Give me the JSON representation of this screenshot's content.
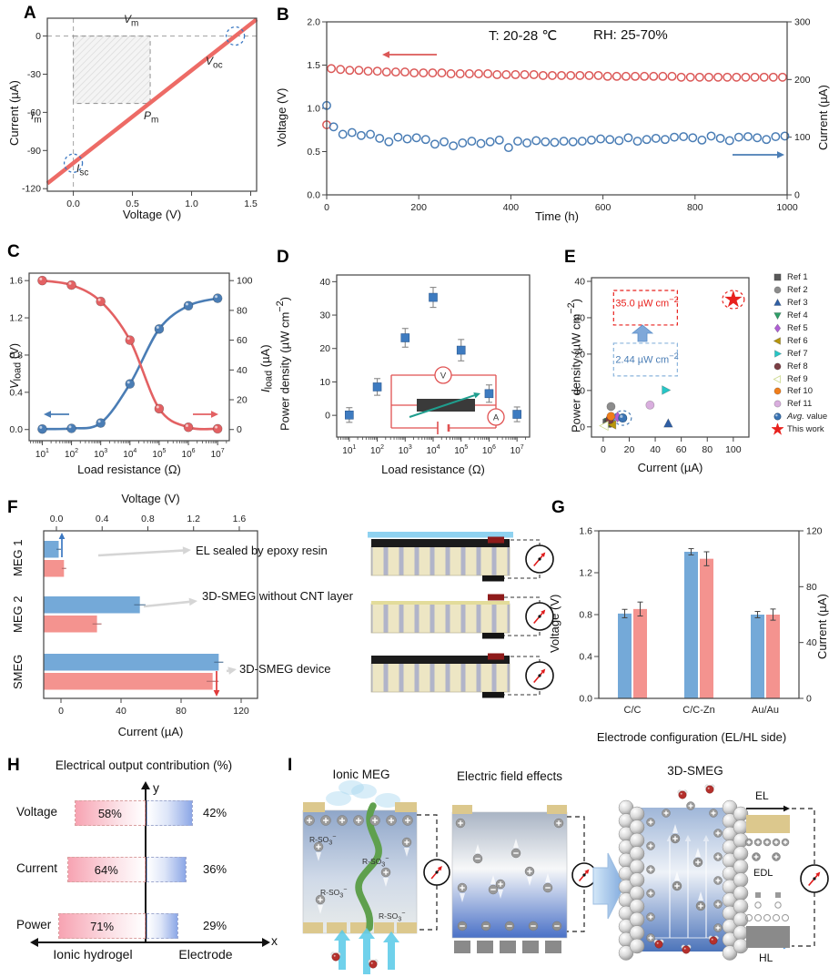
{
  "figure": {
    "panel_letters": {
      "A": "A",
      "B": "B",
      "C": "C",
      "D": "D",
      "E": "E",
      "F": "F",
      "G": "G",
      "H": "H",
      "I": "I"
    }
  },
  "chart_data": [
    {
      "panel": "A",
      "type": "line",
      "xlabel": "Voltage (V)",
      "ylabel": "Current (µA)",
      "xlim": [
        -0.22,
        1.55
      ],
      "ylim": [
        -122,
        14
      ],
      "xticks": [
        "0.0",
        "0.5",
        "1.0",
        "1.5"
      ],
      "xtick_vals": [
        0,
        0.5,
        1,
        1.5
      ],
      "yticks": [
        "0",
        "-30",
        "-60",
        "-90",
        "-120"
      ],
      "ytick_vals": [
        0,
        -30,
        -60,
        -90,
        -120
      ],
      "line_color": "#ED6B66",
      "series": [
        {
          "name": "iv-line",
          "x": [
            -0.22,
            1.55
          ],
          "y": [
            -115.9,
            13.1
          ]
        }
      ],
      "key_points": {
        "isc": {
          "x": 0,
          "y": -100
        },
        "voc": {
          "x": 1.37,
          "y": 0
        }
      },
      "pm_rect": {
        "x0": 0,
        "x1": 0.65,
        "y0": -53,
        "y1": 0
      },
      "annotations": [
        {
          "id": "vm",
          "html": "<i>V</i><sub>m</sub>"
        },
        {
          "id": "voc",
          "html": "<i>V</i><sub>oc</sub>"
        },
        {
          "id": "pm",
          "html": "<i>P</i><sub>m</sub>"
        },
        {
          "id": "im",
          "html": "<i>I</i><sub>m</sub>"
        },
        {
          "id": "isc",
          "html": "<i>I</i><sub>sc</sub>"
        }
      ]
    },
    {
      "panel": "B",
      "type": "scatter",
      "xlabel": "Time (h)",
      "ylabel_left": "Voltage (V)",
      "ylabel_right": "Current (µA)",
      "temp_label": "T: 20-28 ℃",
      "rh_label": "RH: 25-70%",
      "xlim": [
        0,
        1000
      ],
      "ylim_left": [
        0,
        2
      ],
      "ylim_right": [
        0,
        300
      ],
      "xticks": [
        0,
        200,
        400,
        600,
        800,
        1000
      ],
      "yticks_left": [
        "0.0",
        "0.5",
        "1.0",
        "1.5",
        "2.0"
      ],
      "ytick_left_vals": [
        0,
        0.5,
        1,
        1.5,
        2
      ],
      "yticks_right": [
        0,
        100,
        200,
        300
      ],
      "series": [
        {
          "name": "voltage",
          "color": "#DB5857",
          "axis": "left",
          "x": [
            0,
            10,
            30,
            50,
            70,
            90,
            110,
            130,
            150,
            170,
            190,
            210,
            230,
            250,
            270,
            290,
            310,
            330,
            350,
            370,
            390,
            410,
            430,
            450,
            470,
            490,
            510,
            530,
            550,
            570,
            590,
            610,
            630,
            650,
            670,
            690,
            710,
            730,
            750,
            770,
            790,
            810,
            830,
            850,
            870,
            890,
            910,
            930,
            950,
            970,
            990
          ],
          "y": [
            0.81,
            1.46,
            1.45,
            1.44,
            1.44,
            1.43,
            1.43,
            1.42,
            1.42,
            1.42,
            1.41,
            1.41,
            1.41,
            1.41,
            1.4,
            1.4,
            1.4,
            1.4,
            1.4,
            1.39,
            1.39,
            1.39,
            1.39,
            1.39,
            1.38,
            1.38,
            1.38,
            1.38,
            1.38,
            1.38,
            1.38,
            1.37,
            1.37,
            1.37,
            1.37,
            1.37,
            1.37,
            1.37,
            1.37,
            1.36,
            1.36,
            1.36,
            1.36,
            1.36,
            1.36,
            1.36,
            1.36,
            1.36,
            1.36,
            1.36,
            1.36
          ]
        },
        {
          "name": "current",
          "color": "#4A7DB5",
          "axis": "right",
          "x": [
            0,
            15,
            35,
            55,
            75,
            95,
            115,
            135,
            155,
            175,
            195,
            215,
            235,
            255,
            275,
            295,
            315,
            335,
            355,
            375,
            395,
            415,
            435,
            455,
            475,
            495,
            515,
            535,
            555,
            575,
            595,
            615,
            635,
            655,
            675,
            695,
            715,
            735,
            755,
            775,
            795,
            815,
            835,
            855,
            875,
            895,
            915,
            935,
            955,
            975,
            995
          ],
          "y": [
            155,
            118,
            105,
            108,
            103,
            105,
            98,
            92,
            100,
            97,
            99,
            96,
            88,
            92,
            85,
            90,
            93,
            89,
            92,
            95,
            82,
            93,
            90,
            94,
            92,
            91,
            93,
            92,
            93,
            95,
            97,
            96,
            94,
            99,
            93,
            96,
            98,
            96,
            100,
            101,
            99,
            95,
            102,
            98,
            94,
            100,
            101,
            99,
            96,
            101,
            102
          ]
        }
      ]
    },
    {
      "panel": "C",
      "type": "line",
      "xlabel": "Load resistance (Ω)",
      "ylabel_left_html": "<i>V</i><sub>load</sub> (V)",
      "ylabel_right_html": "<i>I</i><sub>load</sub> (µA)",
      "x_log_exponents": [
        1,
        2,
        3,
        4,
        5,
        6,
        7
      ],
      "yticks_left": [
        "0.0",
        "0.4",
        "0.8",
        "1.2",
        "1.6"
      ],
      "ytick_left_vals": [
        0,
        0.4,
        0.8,
        1.2,
        1.6
      ],
      "yticks_right": [
        0,
        20,
        40,
        60,
        80,
        100
      ],
      "series": [
        {
          "name": "V_load",
          "color": "#4A7DB5",
          "axis": "left",
          "exp": [
            1,
            2,
            3,
            4,
            5,
            6,
            7
          ],
          "y": [
            0.005,
            0.012,
            0.07,
            0.49,
            1.08,
            1.33,
            1.41
          ]
        },
        {
          "name": "I_load",
          "color": "#E36163",
          "axis": "right",
          "exp": [
            1,
            2,
            3,
            4,
            5,
            6,
            7
          ],
          "y": [
            100,
            97,
            86,
            60,
            14,
            1.5,
            0.5
          ]
        }
      ]
    },
    {
      "panel": "D",
      "type": "scatter",
      "xlabel": "Load resistance (Ω)",
      "ylabel_html": "Power density (µW cm<sup>−2</sup>)",
      "x_log_exponents": [
        1,
        2,
        3,
        4,
        5,
        6,
        7
      ],
      "yticks": [
        0,
        10,
        20,
        30,
        40
      ],
      "ylim": [
        -6.5,
        42
      ],
      "series": [
        {
          "name": "power",
          "color": "#3E7BC0",
          "exp": [
            1,
            2,
            3,
            4,
            5,
            6,
            7
          ],
          "y": [
            0.1,
            8.5,
            23.2,
            35.3,
            19.5,
            6.5,
            0.3
          ],
          "err": [
            2.2,
            2.5,
            2.8,
            3.0,
            3.2,
            2.6,
            2.2
          ]
        }
      ],
      "inset": {
        "voltmeter": "V",
        "ammeter": "A"
      }
    },
    {
      "panel": "E",
      "type": "scatter",
      "xlabel": "Current  (µA)",
      "ylabel_html": "Power density (µW cm<sup>−2</sup>)",
      "xlim": [
        -9,
        112
      ],
      "ylim": [
        -2.8,
        41
      ],
      "xticks": [
        0,
        20,
        40,
        60,
        80,
        100
      ],
      "yticks": [
        0,
        10,
        20,
        30,
        40
      ],
      "points": [
        {
          "label": "Ref 1",
          "shape": "square",
          "color": "#595959",
          "x": 3,
          "y": 1.0
        },
        {
          "label": "Ref 2",
          "shape": "circle",
          "color": "#8c8c8c",
          "x": 6,
          "y": 5.6
        },
        {
          "label": "Ref 3",
          "shape": "triangle-up",
          "color": "#2F5FA5",
          "x": 50,
          "y": 0.9
        },
        {
          "label": "Ref 4",
          "shape": "triangle-down",
          "color": "#2F9E68",
          "x": 4,
          "y": 1.4
        },
        {
          "label": "Ref 5",
          "shape": "diamond",
          "color": "#B05FD6",
          "x": 11,
          "y": 2.7
        },
        {
          "label": "Ref 6",
          "shape": "triangle-left",
          "color": "#B8960C",
          "x": 7,
          "y": 0.6
        },
        {
          "label": "Ref 7",
          "shape": "triangle-right",
          "color": "#26C6C6",
          "x": 48,
          "y": 10.1
        },
        {
          "label": "Ref 8",
          "shape": "circle",
          "color": "#7B3F45",
          "x": 5,
          "y": 2.0
        },
        {
          "label": "Ref 9",
          "shape": "triangle-left",
          "color": "#CDD98F",
          "open": true,
          "x": 1,
          "y": 0.3
        },
        {
          "label": "Ref 10",
          "shape": "circle",
          "color": "#F07E1B",
          "x": 6,
          "y": 2.9
        },
        {
          "label": "Ref 11",
          "shape": "circle",
          "color": "#D9AEDE",
          "x": 36,
          "y": 6.0
        },
        {
          "label": "Avg. value",
          "label_html": "<i>Avg.</i> value",
          "shape": "sphere",
          "color": "#3A74B5",
          "x": 15,
          "y": 2.44,
          "circled": "#4A7DB5"
        },
        {
          "label": "This work",
          "shape": "star",
          "color": "#E8211D",
          "x": 100,
          "y": 35.0,
          "circled": "#E8211D"
        }
      ],
      "boxes": [
        {
          "text_html": "35.0 µW cm<sup>−2</sup>",
          "color": "#E8211D",
          "x0": 8,
          "x1": 57,
          "y0": 28,
          "y1": 37.5
        },
        {
          "text_html": "2.44 µW cm<sup>−2</sup>",
          "color": "#8AB4DC",
          "x0": 8,
          "x1": 57,
          "y0": 14,
          "y1": 23
        }
      ]
    },
    {
      "panel": "F",
      "type": "bar-h",
      "xlabel_top": "Voltage (V)",
      "xlabel_bottom": "Current (µA)",
      "categories": [
        "MEG 1",
        "MEG 2",
        "SMEG"
      ],
      "xticks_top": [
        "0.0",
        "0.4",
        "0.8",
        "1.2",
        "1.6"
      ],
      "xtick_top_vals": [
        0,
        0.4,
        0.8,
        1.2,
        1.6
      ],
      "xticks_bottom": [
        0,
        40,
        80,
        120
      ],
      "voltage": {
        "color": "#74A9D8",
        "values": [
          0.02,
          0.73,
          1.42
        ],
        "err": [
          0.02,
          0.05,
          0.04
        ]
      },
      "current": {
        "color": "#F4938F",
        "values": [
          2,
          24,
          101
        ],
        "err": [
          1.5,
          3,
          4
        ]
      },
      "annotations": [
        "EL sealed by epoxy resin",
        "3D-SMEG without CNT layer",
        "3D-SMEG device"
      ],
      "devices": [
        {
          "epoxy": true,
          "cnt": true
        },
        {
          "epoxy": false,
          "cnt": false
        },
        {
          "epoxy": false,
          "cnt": true
        }
      ]
    },
    {
      "panel": "G",
      "type": "bar",
      "xlabel": "Electrode configuration (EL/HL side)",
      "ylabel_left": "Voltage (V)",
      "ylabel_right": "Current (µA)",
      "categories": [
        "C/C",
        "C/C-Zn",
        "Au/Au"
      ],
      "yticks_left": [
        "0.0",
        "0.4",
        "0.8",
        "1.2",
        "1.6"
      ],
      "ytick_left_vals": [
        0,
        0.4,
        0.8,
        1.2,
        1.6
      ],
      "yticks_right": [
        0,
        40,
        80,
        120
      ],
      "series": [
        {
          "name": "Voltage",
          "color": "#74A9D8",
          "axis": "left",
          "values": [
            0.81,
            1.4,
            0.8
          ],
          "err": [
            0.04,
            0.03,
            0.03
          ]
        },
        {
          "name": "Current",
          "color": "#F4938F",
          "axis": "right",
          "values": [
            64,
            100,
            60
          ],
          "err": [
            5,
            5,
            4
          ]
        }
      ]
    },
    {
      "panel": "H",
      "type": "bar",
      "title": "Electrical output contribution (%)",
      "categories": [
        "Voltage",
        "Current",
        "Power"
      ],
      "series": [
        {
          "name": "Ionic hydrogel",
          "values": [
            58,
            64,
            71
          ]
        },
        {
          "name": "Electrode",
          "values": [
            42,
            36,
            29
          ]
        }
      ],
      "left_pct": [
        "58%",
        "64%",
        "71%"
      ],
      "right_pct": [
        "42%",
        "36%",
        "29%"
      ],
      "axis_x": "x",
      "axis_y": "y",
      "left_label": "Ionic hydrogel",
      "right_label": "Electrode"
    }
  ],
  "panelI": {
    "titles": [
      "Ionic MEG",
      "Electric field effects",
      "3D-SMEG"
    ],
    "rso3_html": "R-SO<sub>3</sub><sup>−</sup>",
    "labels": {
      "el": "EL",
      "edl": "EDL",
      "hl": "HL"
    }
  }
}
